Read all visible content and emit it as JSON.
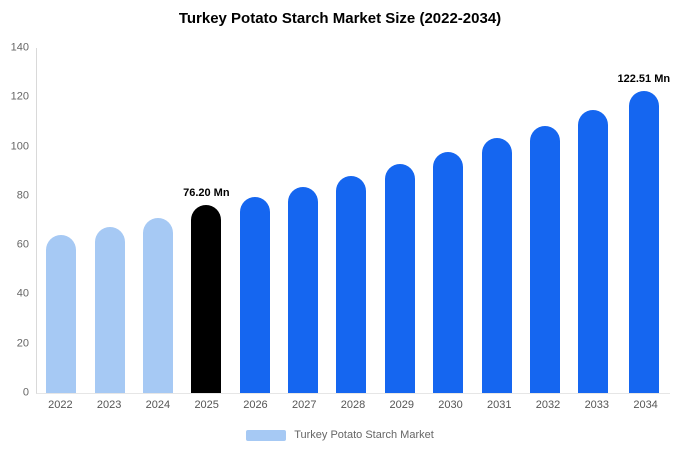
{
  "title": "Turkey Potato Starch Market Size (2022-2034)",
  "colors": {
    "light": "#A6C9F4",
    "dark": "#1566F0",
    "highlight": "#000000"
  },
  "legend": {
    "label": "Turkey Potato Starch Market",
    "swatch_color": "#A6C9F4"
  },
  "chart_data": {
    "type": "bar",
    "title": "Turkey Potato Starch Market Size (2022-2034)",
    "categories": [
      "2022",
      "2023",
      "2024",
      "2025",
      "2026",
      "2027",
      "2028",
      "2029",
      "2030",
      "2031",
      "2032",
      "2033",
      "2034"
    ],
    "values": [
      64,
      67.5,
      71,
      76.2,
      79.5,
      83.5,
      88,
      93,
      98,
      103.5,
      108.5,
      115,
      122.51
    ],
    "unit": "Mn",
    "bar_colors": [
      "light",
      "light",
      "light",
      "highlight",
      "dark",
      "dark",
      "dark",
      "dark",
      "dark",
      "dark",
      "dark",
      "dark",
      "dark"
    ],
    "annotations": [
      {
        "index": 3,
        "label": "76.20 Mn"
      },
      {
        "index": 12,
        "label": "122.51 Mn"
      }
    ],
    "xlabel": "",
    "ylabel": "",
    "ylim": [
      0,
      140
    ],
    "yticks": [
      0,
      20,
      40,
      60,
      80,
      100,
      120,
      140
    ],
    "grid": false,
    "legend_position": "bottom"
  }
}
